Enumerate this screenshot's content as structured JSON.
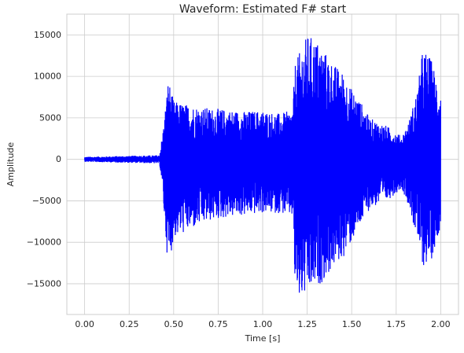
{
  "chart_data": {
    "type": "line",
    "title": "Waveform: Estimated F# start",
    "xlabel": "Time [s]",
    "ylabel": "Amplitude",
    "xlim": [
      -0.1,
      2.1
    ],
    "ylim": [
      -18700,
      17500
    ],
    "x_ticks": [
      0.0,
      0.25,
      0.5,
      0.75,
      1.0,
      1.25,
      1.5,
      1.75,
      2.0
    ],
    "x_tick_labels": [
      "0.00",
      "0.25",
      "0.50",
      "0.75",
      "1.00",
      "1.25",
      "1.50",
      "1.75",
      "2.00"
    ],
    "y_ticks": [
      -15000,
      -10000,
      -5000,
      0,
      5000,
      10000,
      15000
    ],
    "y_tick_labels": [
      "−15000",
      "−10000",
      "−5000",
      "0",
      "5000",
      "10000",
      "15000"
    ],
    "grid": true,
    "line_color": "#0000ff",
    "series": [
      {
        "name": "",
        "envelope": {
          "t": [
            0.0,
            0.42,
            0.43,
            0.44,
            0.45,
            0.47,
            0.5,
            0.6,
            0.7,
            0.8,
            0.9,
            1.0,
            1.1,
            1.17,
            1.18,
            1.2,
            1.25,
            1.3,
            1.35,
            1.4,
            1.45,
            1.5,
            1.55,
            1.6,
            1.7,
            1.78,
            1.82,
            1.87,
            1.9,
            1.95,
            2.0
          ],
          "max": [
            300,
            500,
            2000,
            3500,
            5500,
            9800,
            7000,
            6500,
            6200,
            6000,
            5800,
            5900,
            5500,
            6000,
            11500,
            12500,
            15000,
            14500,
            13000,
            11500,
            10500,
            8500,
            7000,
            5000,
            4000,
            2800,
            4500,
            8500,
            13500,
            12000,
            8000
          ],
          "min": [
            -300,
            -500,
            -2000,
            -4500,
            -8000,
            -13200,
            -9500,
            -8500,
            -7500,
            -7000,
            -6800,
            -6500,
            -6500,
            -7000,
            -15000,
            -17200,
            -16500,
            -15500,
            -14500,
            -13000,
            -12000,
            -10000,
            -8000,
            -6000,
            -5000,
            -3500,
            -5500,
            -10000,
            -13000,
            -12000,
            -8000
          ]
        }
      }
    ]
  }
}
